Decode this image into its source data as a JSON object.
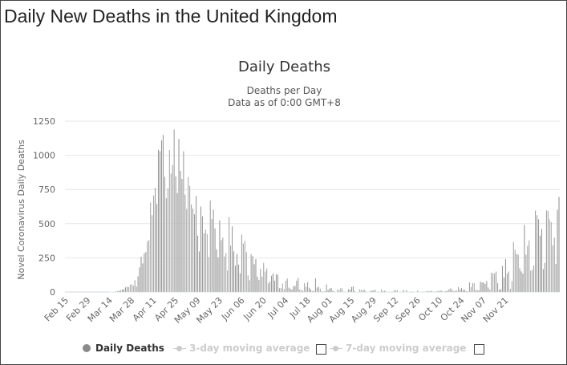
{
  "page": {
    "title": "Daily New Deaths in the United Kingdom"
  },
  "legend": {
    "series1": "Daily Deaths",
    "series2": "3-day moving average",
    "series3": "7-day moving average"
  },
  "colors": {
    "bar": "#8c8c8c",
    "grid": "#e6e6e6",
    "axis_text": "#666666",
    "inactive": "#cccccc"
  },
  "chart_data": {
    "type": "bar",
    "title": "Daily Deaths",
    "subtitle": "Deaths per Day",
    "subtitle2": "Data as of 0:00 GMT+8",
    "ylabel": "Novel Coronavirus Daily Deaths",
    "xlabel": "",
    "ylim": [
      0,
      1250
    ],
    "yticks": [
      0,
      250,
      500,
      750,
      1000,
      1250
    ],
    "grid": true,
    "legend_position": "bottom",
    "start_date": "Feb 15",
    "xtick_labels": [
      "Feb 15",
      "Feb 29",
      "Mar 14",
      "Mar 28",
      "Apr 11",
      "Apr 25",
      "May 09",
      "May 23",
      "Jun 06",
      "Jun 20",
      "Jul 04",
      "Jul 18",
      "Aug 01",
      "Aug 15",
      "Aug 29",
      "Sep 12",
      "Sep 26",
      "Oct 10",
      "Oct 24",
      "Nov 07",
      "Nov 21"
    ],
    "xtick_every_days": 14,
    "values": [
      0,
      0,
      0,
      0,
      0,
      0,
      0,
      0,
      0,
      0,
      0,
      0,
      0,
      0,
      0,
      0,
      0,
      0,
      0,
      0,
      0,
      0,
      0,
      0,
      0,
      0,
      0,
      0,
      1,
      1,
      1,
      3,
      5,
      8,
      10,
      14,
      20,
      21,
      35,
      40,
      36,
      55,
      56,
      48,
      87,
      41,
      115,
      181,
      260,
      209,
      284,
      294,
      370,
      381,
      655,
      563,
      707,
      763,
      644,
      1040,
      1030,
      1110,
      1150,
      843,
      687,
      759,
      1040,
      866,
      930,
      1190,
      847,
      725,
      1120,
      887,
      828,
      1030,
      713,
      608,
      842,
      777,
      641,
      611,
      569,
      703,
      413,
      297,
      626,
      555,
      430,
      457,
      424,
      257,
      671,
      534,
      604,
      466,
      313,
      254,
      524,
      380,
      399,
      260,
      286,
      158,
      548,
      340,
      481,
      298,
      193,
      279,
      202,
      138,
      421,
      355,
      376,
      292,
      121,
      86,
      278,
      263,
      204,
      241,
      113,
      90,
      170,
      114,
      214,
      150,
      173,
      64,
      77,
      120,
      136,
      83,
      131,
      127,
      29,
      29,
      62,
      23,
      83,
      99,
      33,
      25,
      18,
      44,
      45,
      84,
      105,
      20,
      13,
      12,
      65,
      40,
      73,
      32,
      20,
      6,
      11,
      100,
      34,
      39,
      24,
      8,
      0,
      7,
      56,
      16,
      26,
      31,
      11,
      4,
      2,
      19,
      13,
      29,
      27,
      3,
      3,
      1,
      21,
      17,
      38,
      42,
      7,
      1,
      2,
      20,
      16,
      12,
      18,
      6,
      1,
      2,
      7,
      12,
      12,
      18,
      3,
      0,
      1,
      20,
      7,
      10,
      5,
      2,
      0,
      1,
      0,
      12,
      14,
      15,
      1,
      0,
      1,
      16,
      3,
      12,
      1,
      0,
      0,
      0,
      1,
      2,
      12,
      1,
      1,
      0,
      0,
      3,
      8,
      6,
      7,
      9,
      3,
      0,
      5,
      11,
      7,
      13,
      4,
      4,
      8,
      9,
      21,
      27,
      20,
      7,
      12,
      11,
      37,
      20,
      30,
      16,
      17,
      6,
      6,
      71,
      37,
      65,
      67,
      17,
      14,
      14,
      76,
      70,
      71,
      59,
      81,
      33,
      19,
      143,
      137,
      138,
      150,
      67,
      19,
      21,
      191,
      107,
      241,
      136,
      151,
      23,
      80,
      367,
      310,
      280,
      274,
      174,
      151,
      136,
      492,
      274,
      339,
      378,
      156,
      162,
      194,
      596,
      563,
      533,
      413,
      462,
      168,
      213,
      598,
      595,
      532,
      511,
      341,
      398,
      206,
      603,
      696
    ]
  }
}
